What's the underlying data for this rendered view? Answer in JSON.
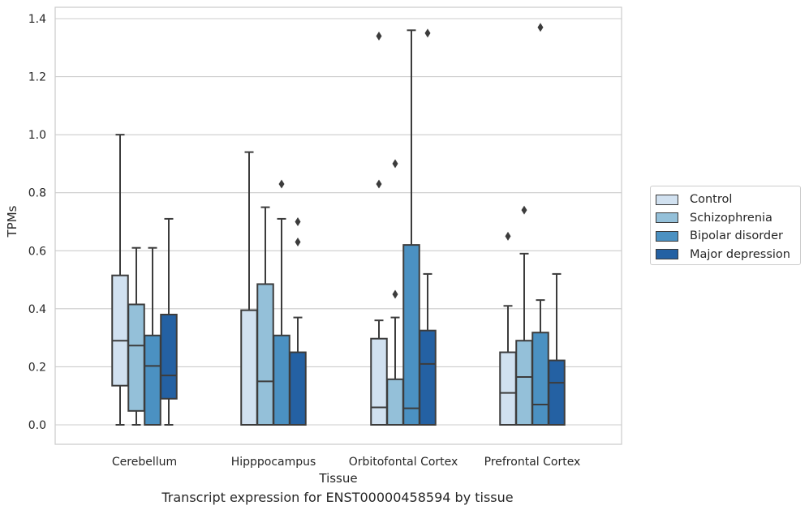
{
  "chart_data": {
    "type": "box",
    "xlabel": "Tissue",
    "ylabel": "TPMs",
    "caption": "Transcript expression for ENST00000458594 by tissue",
    "ylim": [
      -0.065,
      1.44
    ],
    "yticks": [
      0.0,
      0.2,
      0.4,
      0.6,
      0.8,
      1.0,
      1.2,
      1.4
    ],
    "ytick_labels": [
      "0.0",
      "0.2",
      "0.4",
      "0.6",
      "0.8",
      "1.0",
      "1.2",
      "1.4"
    ],
    "grid": "horizontal",
    "legend_position": "right",
    "categories": [
      "Cerebellum",
      "Hipppocampus",
      "Orbitofontal Cortex",
      "Prefrontal Cortex"
    ],
    "series": [
      {
        "name": "Control",
        "color": "#d1e1f0",
        "boxes": [
          {
            "whislo": 0.0,
            "q1": 0.135,
            "med": 0.29,
            "q3": 0.515,
            "whishi": 1.0,
            "fliers": []
          },
          {
            "whislo": 0.0,
            "q1": 0.0,
            "med": 0.0,
            "q3": 0.395,
            "whishi": 0.94,
            "fliers": []
          },
          {
            "whislo": 0.0,
            "q1": 0.0,
            "med": 0.06,
            "q3": 0.297,
            "whishi": 0.36,
            "fliers": [
              0.83,
              1.34
            ]
          },
          {
            "whislo": 0.0,
            "q1": 0.0,
            "med": 0.11,
            "q3": 0.25,
            "whishi": 0.41,
            "fliers": [
              0.65
            ]
          }
        ]
      },
      {
        "name": "Schizophrenia",
        "color": "#94c0d9",
        "boxes": [
          {
            "whislo": 0.0,
            "q1": 0.048,
            "med": 0.273,
            "q3": 0.415,
            "whishi": 0.61,
            "fliers": []
          },
          {
            "whislo": 0.0,
            "q1": 0.0,
            "med": 0.15,
            "q3": 0.485,
            "whishi": 0.75,
            "fliers": []
          },
          {
            "whislo": 0.0,
            "q1": 0.0,
            "med": 0.0,
            "q3": 0.157,
            "whishi": 0.37,
            "fliers": [
              0.45,
              0.9
            ]
          },
          {
            "whislo": 0.0,
            "q1": 0.0,
            "med": 0.165,
            "q3": 0.29,
            "whishi": 0.59,
            "fliers": [
              0.74
            ]
          }
        ]
      },
      {
        "name": "Bipolar disorder",
        "color": "#4b91c2",
        "boxes": [
          {
            "whislo": 0.0,
            "q1": 0.0,
            "med": 0.203,
            "q3": 0.308,
            "whishi": 0.61,
            "fliers": []
          },
          {
            "whislo": 0.0,
            "q1": 0.0,
            "med": 0.0,
            "q3": 0.308,
            "whishi": 0.71,
            "fliers": [
              0.83
            ]
          },
          {
            "whislo": 0.0,
            "q1": 0.0,
            "med": 0.057,
            "q3": 0.62,
            "whishi": 1.36,
            "fliers": []
          },
          {
            "whislo": 0.0,
            "q1": 0.0,
            "med": 0.07,
            "q3": 0.318,
            "whishi": 0.43,
            "fliers": [
              1.37
            ]
          }
        ]
      },
      {
        "name": "Major depression",
        "color": "#2461a3",
        "boxes": [
          {
            "whislo": 0.0,
            "q1": 0.09,
            "med": 0.17,
            "q3": 0.38,
            "whishi": 0.71,
            "fliers": []
          },
          {
            "whislo": 0.0,
            "q1": 0.0,
            "med": 0.0,
            "q3": 0.25,
            "whishi": 0.37,
            "fliers": [
              0.63,
              0.7
            ]
          },
          {
            "whislo": 0.0,
            "q1": 0.0,
            "med": 0.21,
            "q3": 0.325,
            "whishi": 0.52,
            "fliers": [
              1.35
            ]
          },
          {
            "whislo": 0.0,
            "q1": 0.0,
            "med": 0.145,
            "q3": 0.222,
            "whishi": 0.52,
            "fliers": []
          }
        ]
      }
    ]
  }
}
